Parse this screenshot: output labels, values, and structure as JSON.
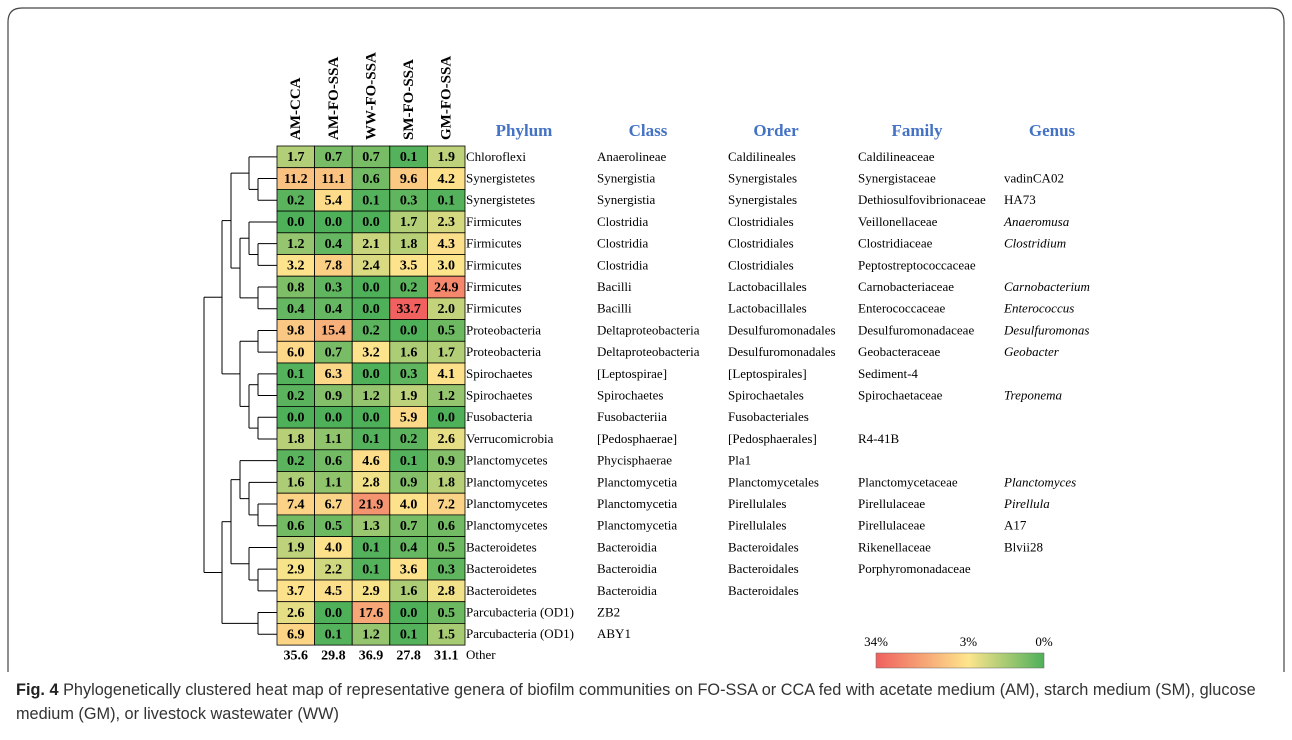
{
  "chart_data": {
    "type": "heatmap",
    "columns": [
      "AM-CCA",
      "AM-FO-SSA",
      "WW-FO-SSA",
      "SM-FO-SSA",
      "GM-FO-SSA"
    ],
    "values": [
      [
        1.7,
        0.7,
        0.7,
        0.1,
        1.9
      ],
      [
        11.2,
        11.1,
        0.6,
        9.6,
        4.2
      ],
      [
        0.2,
        5.4,
        0.1,
        0.3,
        0.1
      ],
      [
        0.0,
        0.0,
        0.0,
        1.7,
        2.3
      ],
      [
        1.2,
        0.4,
        2.1,
        1.8,
        4.3
      ],
      [
        3.2,
        7.8,
        2.4,
        3.5,
        3.0
      ],
      [
        0.8,
        0.3,
        0.0,
        0.2,
        24.9
      ],
      [
        0.4,
        0.4,
        0.0,
        33.7,
        2.0
      ],
      [
        9.8,
        15.4,
        0.2,
        0.0,
        0.5
      ],
      [
        6.0,
        0.7,
        3.2,
        1.6,
        1.7
      ],
      [
        0.1,
        6.3,
        0.0,
        0.3,
        4.1
      ],
      [
        0.2,
        0.9,
        1.2,
        1.9,
        1.2
      ],
      [
        0.0,
        0.0,
        0.0,
        5.9,
        0.0
      ],
      [
        1.8,
        1.1,
        0.1,
        0.2,
        2.6
      ],
      [
        0.2,
        0.6,
        4.6,
        0.1,
        0.9
      ],
      [
        1.6,
        1.1,
        2.8,
        0.9,
        1.8
      ],
      [
        7.4,
        6.7,
        21.9,
        4.0,
        7.2
      ],
      [
        0.6,
        0.5,
        1.3,
        0.7,
        0.6
      ],
      [
        1.9,
        4.0,
        0.1,
        0.4,
        0.5
      ],
      [
        2.9,
        2.2,
        0.1,
        3.6,
        0.3
      ],
      [
        3.7,
        4.5,
        2.9,
        1.6,
        2.8
      ],
      [
        2.6,
        0.0,
        17.6,
        0.0,
        0.5
      ],
      [
        6.9,
        0.1,
        1.2,
        0.1,
        1.5
      ]
    ],
    "value_labels": [
      [
        "1.7",
        "0.7",
        "0.7",
        "0.1",
        "1.9"
      ],
      [
        "11.2",
        "11.1",
        "0.6",
        "9.6",
        "4.2"
      ],
      [
        "0.2",
        "5.4",
        "0.1",
        "0.3",
        "0.1"
      ],
      [
        "0.0",
        "0.0",
        "0.0",
        "1.7",
        "2.3"
      ],
      [
        "1.2",
        "0.4",
        "2.1",
        "1.8",
        "4.3"
      ],
      [
        "3.2",
        "7.8",
        "2.4",
        "3.5",
        "3.0"
      ],
      [
        "0.8",
        "0.3",
        "0.0",
        "0.2",
        "24.9"
      ],
      [
        "0.4",
        "0.4",
        "0.0",
        "33.7",
        "2.0"
      ],
      [
        "9.8",
        "15.4",
        "0.2",
        "0.0",
        "0.5"
      ],
      [
        "6.0",
        "0.7",
        "3.2",
        "1.6",
        "1.7"
      ],
      [
        "0.1",
        "6.3",
        "0.0",
        "0.3",
        "4.1"
      ],
      [
        "0.2",
        "0.9",
        "1.2",
        "1.9",
        "1.2"
      ],
      [
        "0.0",
        "0.0",
        "0.0",
        "5.9",
        "0.0"
      ],
      [
        "1.8",
        "1.1",
        "0.1",
        "0.2",
        "2.6"
      ],
      [
        "0.2",
        "0.6",
        "4.6",
        "0.1",
        "0.9"
      ],
      [
        "1.6",
        "1.1",
        "2.8",
        "0.9",
        "1.8"
      ],
      [
        "7.4",
        "6.7",
        "21.9",
        "4.0",
        "7.2"
      ],
      [
        "0.6",
        "0.5",
        "1.3",
        "0.7",
        "0.6"
      ],
      [
        "1.9",
        "4.0",
        "0.1",
        "0.4",
        "0.5"
      ],
      [
        "2.9",
        "2.2",
        "0.1",
        "3.6",
        "0.3"
      ],
      [
        "3.7",
        "4.5",
        "2.9",
        "1.6",
        "2.8"
      ],
      [
        "2.6",
        "0.0",
        "17.6",
        "0.0",
        "0.5"
      ],
      [
        "6.9",
        "0.1",
        "1.2",
        "0.1",
        "1.5"
      ]
    ],
    "other": {
      "label": "Other",
      "values": [
        35.6,
        29.8,
        36.9,
        27.8,
        31.1
      ]
    },
    "taxonomy": {
      "headers": [
        "Phylum",
        "Class",
        "Order",
        "Family",
        "Genus"
      ],
      "rows": [
        [
          "Chloroflexi",
          "Anaerolineae",
          "Caldilineales",
          "Caldilineaceae",
          null
        ],
        [
          "Synergistetes",
          "Synergistia",
          "Synergistales",
          "Synergistaceae",
          "vadinCA02"
        ],
        [
          "Synergistetes",
          "Synergistia",
          "Synergistales",
          "Dethiosulfovibrionaceae",
          "HA73"
        ],
        [
          "Firmicutes",
          "Clostridia",
          "Clostridiales",
          "Veillonellaceae",
          "Anaeromusa"
        ],
        [
          "Firmicutes",
          "Clostridia",
          "Clostridiales",
          "Clostridiaceae",
          "Clostridium"
        ],
        [
          "Firmicutes",
          "Clostridia",
          "Clostridiales",
          "Peptostreptococcaceae",
          null
        ],
        [
          "Firmicutes",
          "Bacilli",
          "Lactobacillales",
          "Carnobacteriaceae",
          "Carnobacterium"
        ],
        [
          "Firmicutes",
          "Bacilli",
          "Lactobacillales",
          "Enterococcaceae",
          "Enterococcus"
        ],
        [
          "Proteobacteria",
          "Deltaproteobacteria",
          "Desulfuromonadales",
          "Desulfuromonadaceae",
          "Desulfuromonas"
        ],
        [
          "Proteobacteria",
          "Deltaproteobacteria",
          "Desulfuromonadales",
          "Geobacteraceae",
          "Geobacter"
        ],
        [
          "Spirochaetes",
          "[Leptospirae]",
          "[Leptospirales]",
          "Sediment-4",
          null
        ],
        [
          "Spirochaetes",
          "Spirochaetes",
          "Spirochaetales",
          "Spirochaetaceae",
          "Treponema"
        ],
        [
          "Fusobacteria",
          "Fusobacteriia",
          "Fusobacteriales",
          null,
          null
        ],
        [
          "Verrucomicrobia",
          "[Pedosphaerae]",
          "[Pedosphaerales]",
          "R4-41B",
          null
        ],
        [
          "Planctomycetes",
          "Phycisphaerae",
          "Pla1",
          null,
          null
        ],
        [
          "Planctomycetes",
          "Planctomycetia",
          "Planctomycetales",
          "Planctomycetaceae",
          "Planctomyces"
        ],
        [
          "Planctomycetes",
          "Planctomycetia",
          "Pirellulales",
          "Pirellulaceae",
          "Pirellula"
        ],
        [
          "Planctomycetes",
          "Planctomycetia",
          "Pirellulales",
          "Pirellulaceae",
          "A17"
        ],
        [
          "Bacteroidetes",
          "Bacteroidia",
          "Bacteroidales",
          "Rikenellaceae",
          "Blvii28"
        ],
        [
          "Bacteroidetes",
          "Bacteroidia",
          "Bacteroidales",
          "Porphyromonadaceae",
          null
        ],
        [
          "Bacteroidetes",
          "Bacteroidia",
          "Bacteroidales",
          null,
          null
        ],
        [
          "Parcubacteria (OD1)",
          "ZB2",
          null,
          null,
          null
        ],
        [
          "Parcubacteria (OD1)",
          "ABY1",
          null,
          null,
          null
        ]
      ],
      "genus_italic": [
        false,
        false,
        false,
        true,
        true,
        false,
        true,
        true,
        true,
        true,
        false,
        true,
        false,
        false,
        false,
        true,
        true,
        false,
        false,
        false,
        false,
        false,
        false
      ]
    },
    "colorscale": [
      {
        "value": 34,
        "label": "34%",
        "color": "#f0605f"
      },
      {
        "value": 3,
        "label": "3%",
        "color": "#fde58c"
      },
      {
        "value": 0,
        "label": "0%",
        "color": "#4fb05a"
      }
    ],
    "caption": {
      "label": "Fig. 4",
      "text": "Phylogenetically clustered heat map of representative genera of biofilm communities on FO-SSA or CCA fed with acetate medium (AM), starch medium (SM), glucose medium (GM), or livestock wastewater (WW)"
    }
  }
}
